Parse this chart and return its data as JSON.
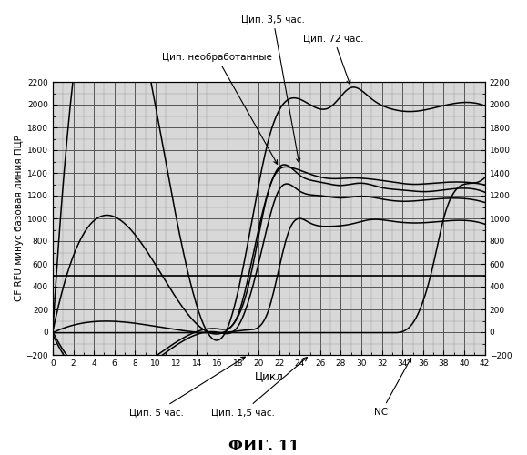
{
  "title": "ФИГ. 11",
  "xlabel": "Цикл",
  "ylabel": "CF RFU минус базовая линия ПЦР",
  "xlim": [
    0,
    42
  ],
  "ylim": [
    -200,
    2200
  ],
  "background_color": "#ffffff",
  "line_color": "#000000",
  "ann_unprocessed_text": "Цип. необработанные",
  "ann_72h_text": "Цип. 72 час.",
  "ann_35h_text": "Цип. 3,5 час.",
  "ann_5h_text": "Цип. 5 час.",
  "ann_15h_text": "Цип. 1,5 час.",
  "ann_nc_text": "NC",
  "curve_72h_kx": [
    0,
    15,
    17,
    19,
    21,
    23,
    25,
    27,
    29,
    31,
    33,
    35,
    37,
    39,
    42
  ],
  "curve_72h_ky": [
    0,
    5,
    40,
    800,
    1700,
    2050,
    2000,
    1980,
    2150,
    2050,
    1960,
    1940,
    1970,
    2010,
    1990
  ],
  "curve_unp_kx": [
    0,
    14,
    16,
    18,
    20,
    22,
    24,
    26,
    28,
    30,
    32,
    34,
    36,
    38,
    42
  ],
  "curve_unp_ky": [
    5,
    5,
    30,
    150,
    900,
    1450,
    1380,
    1320,
    1290,
    1310,
    1270,
    1250,
    1235,
    1250,
    1230
  ],
  "curve_35h_kx": [
    0,
    15,
    17,
    19,
    21,
    23,
    25,
    27,
    29,
    31,
    33,
    35,
    37,
    39,
    42
  ],
  "curve_35h_ky": [
    2,
    5,
    20,
    400,
    1250,
    1450,
    1390,
    1350,
    1355,
    1345,
    1320,
    1300,
    1310,
    1320,
    1295
  ],
  "curve_5h_kx": [
    0,
    14,
    16,
    18,
    20,
    22,
    24,
    26,
    28,
    30,
    32,
    34,
    36,
    38,
    42
  ],
  "curve_5h_ky": [
    -20,
    -20,
    0,
    50,
    600,
    1250,
    1240,
    1200,
    1180,
    1195,
    1170,
    1150,
    1160,
    1175,
    1140
  ],
  "curve_15h_kx": [
    0,
    15,
    17,
    19,
    21,
    23,
    25,
    27,
    29,
    31,
    33,
    35,
    37,
    39,
    42
  ],
  "curve_15h_ky": [
    -5,
    -5,
    0,
    20,
    200,
    900,
    960,
    930,
    950,
    990,
    975,
    960,
    968,
    982,
    950
  ],
  "curve_nc_kx": [
    0,
    20,
    30,
    33,
    35,
    37,
    38,
    40,
    42
  ],
  "curve_nc_ky": [
    -5,
    -5,
    -5,
    -5,
    80,
    600,
    1000,
    1300,
    1360
  ],
  "flat_line_y": 500
}
